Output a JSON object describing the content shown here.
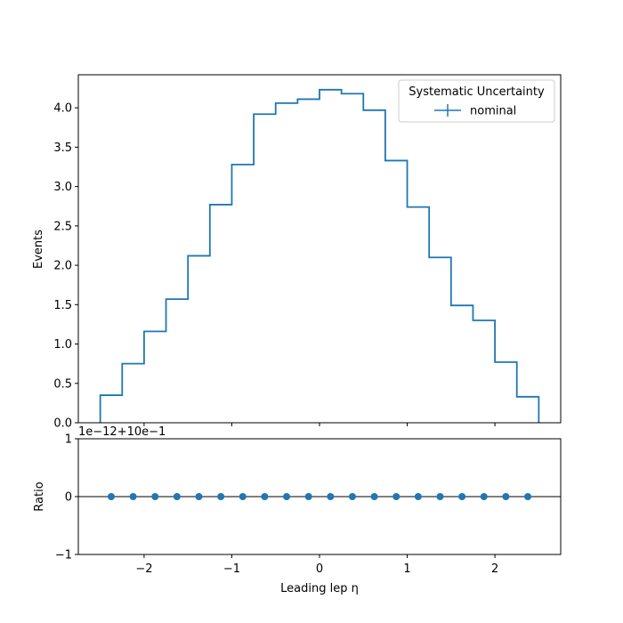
{
  "chart_data": [
    {
      "type": "step",
      "panel": "main",
      "ylabel": "Events",
      "xlim": [
        -2.75,
        2.75
      ],
      "ylim": [
        0,
        4.42
      ],
      "yticks": [
        0.0,
        0.5,
        1.0,
        1.5,
        2.0,
        2.5,
        3.0,
        3.5,
        4.0
      ],
      "ytick_labels": [
        "0.0",
        "0.5",
        "1.0",
        "1.5",
        "2.0",
        "2.5",
        "3.0",
        "3.5",
        "4.0"
      ],
      "bin_edges": [
        -2.5,
        -2.25,
        -2.0,
        -1.75,
        -1.5,
        -1.25,
        -1.0,
        -0.75,
        -0.5,
        -0.25,
        0.0,
        0.25,
        0.5,
        0.75,
        1.0,
        1.25,
        1.5,
        1.75,
        2.0,
        2.25,
        2.5
      ],
      "series": [
        {
          "name": "nominal",
          "color": "#1f77b4",
          "values": [
            0.35,
            0.75,
            1.16,
            1.57,
            2.12,
            2.77,
            3.28,
            3.92,
            4.06,
            4.11,
            4.23,
            4.18,
            3.97,
            3.33,
            2.74,
            2.1,
            1.49,
            1.3,
            0.77,
            0.33
          ]
        }
      ],
      "legend": {
        "title": "Systematic Uncertainty",
        "placement": "top-right",
        "entries": [
          "nominal"
        ]
      }
    },
    {
      "type": "scatter",
      "panel": "ratio",
      "ylabel": "Ratio",
      "xlabel": "Leading lep η",
      "offset_text": "1e−12+10e−1",
      "xlim": [
        -2.75,
        2.75
      ],
      "ylim": [
        -1,
        1
      ],
      "xticks": [
        -2,
        -1,
        0,
        1,
        2
      ],
      "xtick_labels": [
        "−2",
        "−1",
        "0",
        "1",
        "2"
      ],
      "yticks": [
        -1,
        0,
        1
      ],
      "ytick_labels": [
        "−1",
        "0",
        "1"
      ],
      "reference_line": 0,
      "x": [
        -2.375,
        -2.125,
        -1.875,
        -1.625,
        -1.375,
        -1.125,
        -0.875,
        -0.625,
        -0.375,
        -0.125,
        0.125,
        0.375,
        0.625,
        0.875,
        1.125,
        1.375,
        1.625,
        1.875,
        2.125,
        2.375
      ],
      "y": [
        0,
        0,
        0,
        0,
        0,
        0,
        0,
        0,
        0,
        0,
        0,
        0,
        0,
        0,
        0,
        0,
        0,
        0,
        0,
        0
      ],
      "color": "#1f77b4"
    }
  ]
}
